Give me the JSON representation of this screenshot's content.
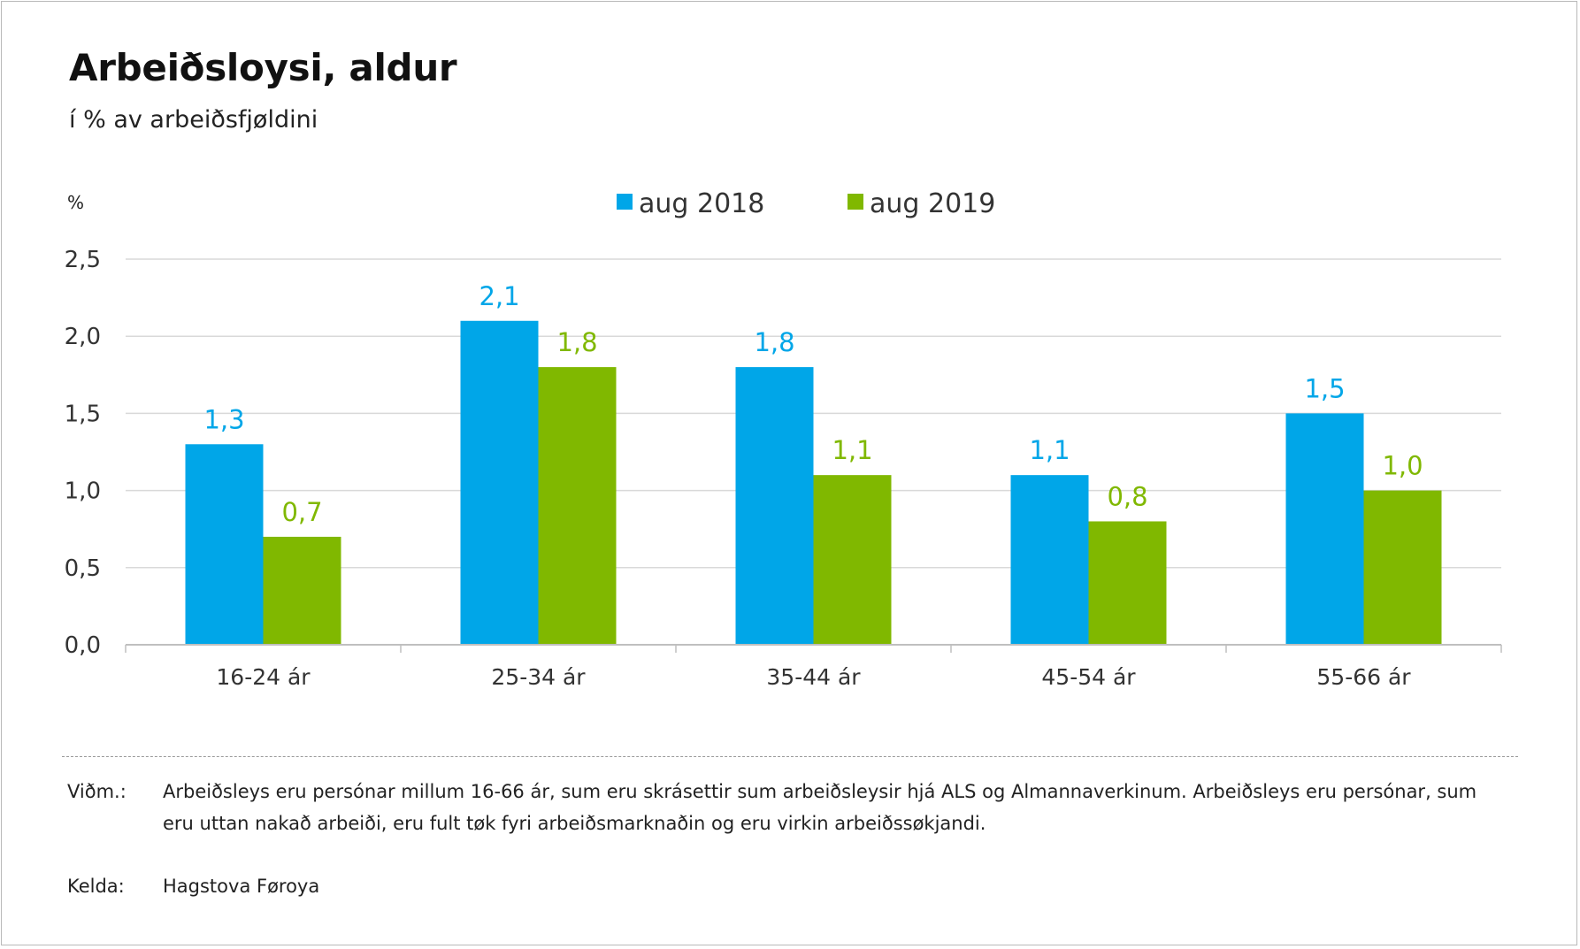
{
  "title": "Arbeiðsloysi, aldur",
  "subtitle": "í % av arbeiðsfjøldini",
  "unit_label": "%",
  "colors": {
    "aug 2018": "#00a6e8",
    "aug 2019": "#80b800",
    "grid": "#d9d9d9",
    "axis": "#bfbfbf"
  },
  "chart_data": {
    "type": "bar",
    "categories": [
      "16-24 ár",
      "25-34 ár",
      "35-44 ár",
      "45-54 ár",
      "55-66 ár"
    ],
    "series": [
      {
        "name": "aug 2018",
        "values": [
          1.3,
          2.1,
          1.8,
          1.1,
          1.5
        ],
        "labels": [
          "1,3",
          "2,1",
          "1,8",
          "1,1",
          "1,5"
        ]
      },
      {
        "name": "aug 2019",
        "values": [
          0.7,
          1.8,
          1.1,
          0.8,
          1.0
        ],
        "labels": [
          "0,7",
          "1,8",
          "1,1",
          "0,8",
          "1,0"
        ]
      }
    ],
    "ylim": [
      0,
      2.5
    ],
    "yticks": [
      0,
      0.5,
      1.0,
      1.5,
      2.0,
      2.5
    ],
    "ytick_labels": [
      "0,0",
      "0,5",
      "1,0",
      "1,5",
      "2,0",
      "2,5"
    ],
    "grid": true,
    "legend": "top-center"
  },
  "notes": {
    "note_key": "Viðm.:",
    "note_text": "Arbeiðsleys eru persónar millum 16-66 ár, sum eru skrásettir sum arbeiðsleysir hjá ALS og Almannaverkinum. Arbeiðsleys eru persónar, sum eru uttan nakað arbeiði, eru fult tøk fyri arbeiðsmarknaðin og eru virkin arbeiðssøkjandi.",
    "source_key": "Kelda:",
    "source_text": "Hagstova Føroya"
  }
}
